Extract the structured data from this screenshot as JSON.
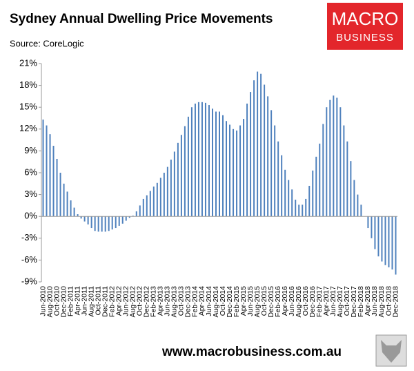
{
  "chart_data": {
    "type": "bar",
    "title": "Sydney Annual Dwelling Price Movements",
    "subtitle": "Source: CoreLogic",
    "logo_top": "MACRO",
    "logo_bottom": "BUSINESS",
    "footer": "www.macrobusiness.com.au",
    "color": "#4f81bd",
    "ylim": [
      -9,
      21
    ],
    "yticks": [
      {
        "value": 21,
        "label": "21%"
      },
      {
        "value": 18,
        "label": "18%"
      },
      {
        "value": 15,
        "label": "15%"
      },
      {
        "value": 12,
        "label": "12%"
      },
      {
        "value": 9,
        "label": "9%"
      },
      {
        "value": 6,
        "label": "6%"
      },
      {
        "value": 3,
        "label": "3%"
      },
      {
        "value": 0,
        "label": "0%"
      },
      {
        "value": -3,
        "label": "-3%"
      },
      {
        "value": -6,
        "label": "-6%"
      },
      {
        "value": -9,
        "label": "-9%"
      }
    ],
    "categories": [
      "Jun-2010",
      null,
      "Aug-2010",
      null,
      "Oct-2010",
      null,
      "Dec-2010",
      null,
      "Feb-2011",
      null,
      "Apr-2011",
      null,
      "Jun-2011",
      null,
      "Aug-2011",
      null,
      "Oct-2011",
      null,
      "Dec-2011",
      null,
      "Feb-2012",
      null,
      "Apr-2012",
      null,
      "Jun-2012",
      null,
      "Aug-2012",
      null,
      "Oct-2012",
      null,
      "Dec-2012",
      null,
      "Feb-2013",
      null,
      "Apr-2013",
      null,
      "Jun-2013",
      null,
      "Aug-2013",
      null,
      "Oct-2013",
      null,
      "Dec-2013",
      null,
      "Feb-2014",
      null,
      "Apr-2014",
      null,
      "Jun-2014",
      null,
      "Aug-2014",
      null,
      "Oct-2014",
      null,
      "Dec-2014",
      null,
      "Feb-2015",
      null,
      "Apr-2015",
      null,
      "Jun-2015",
      null,
      "Aug-2015",
      null,
      "Oct-2015",
      null,
      "Dec-2015",
      null,
      "Feb-2016",
      null,
      "Apr-2016",
      null,
      "Jun-2016",
      null,
      "Aug-2016",
      null,
      "Oct-2016",
      null,
      "Dec-2016",
      null,
      "Feb-2017",
      null,
      "Apr-2017",
      null,
      "Jun-2017",
      null,
      "Aug-2017",
      null,
      "Oct-2017",
      null,
      "Dec-2017",
      null,
      "Feb-2018",
      null,
      "Apr-2018",
      null,
      "Jun-2018",
      null,
      "Aug-2018",
      null,
      "Oct-2018",
      null,
      "Dec-2018"
    ],
    "values": [
      13.3,
      12.5,
      11.3,
      9.7,
      7.9,
      6.0,
      4.5,
      3.4,
      2.2,
      1.2,
      0.3,
      -0.3,
      -0.7,
      -1.1,
      -1.6,
      -2.0,
      -2.1,
      -2.1,
      -2.1,
      -2.0,
      -1.8,
      -1.6,
      -1.3,
      -1.0,
      -0.6,
      -0.2,
      0.1,
      0.7,
      1.5,
      2.4,
      2.9,
      3.5,
      4.1,
      4.6,
      5.3,
      6.0,
      6.8,
      7.8,
      8.9,
      10.1,
      11.2,
      12.4,
      13.7,
      15.0,
      15.5,
      15.7,
      15.7,
      15.6,
      15.3,
      14.8,
      14.4,
      14.4,
      13.9,
      13.1,
      12.6,
      12.0,
      11.8,
      12.5,
      13.4,
      15.5,
      17.1,
      18.7,
      19.9,
      19.6,
      18.1,
      16.5,
      14.6,
      12.5,
      10.3,
      8.4,
      6.4,
      5.0,
      3.7,
      2.3,
      1.6,
      1.6,
      2.4,
      4.2,
      6.3,
      8.2,
      10.0,
      12.7,
      15.0,
      16.0,
      16.6,
      16.3,
      15.0,
      12.5,
      10.3,
      7.6,
      5.0,
      3.0,
      1.6,
      0.0,
      -1.6,
      -3.0,
      -4.5,
      -5.5,
      -6.2,
      -6.7,
      -7.0,
      -7.3,
      -8.0
    ]
  }
}
